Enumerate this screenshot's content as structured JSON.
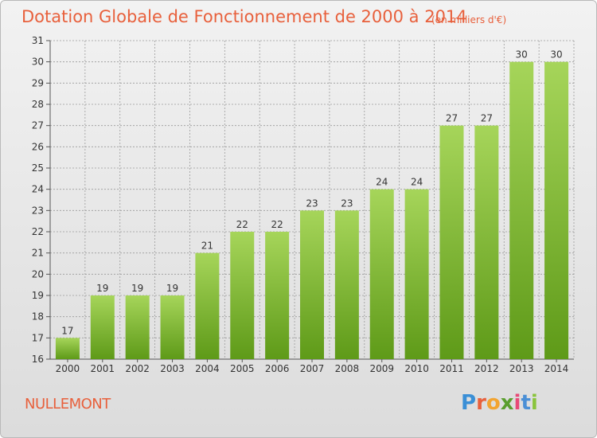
{
  "header": {
    "title": "Dotation Globale de Fonctionnement de 2000 à 2014",
    "unit": "(en milliers d'€)"
  },
  "footer": {
    "commune": "NULLEMONT",
    "logo_letters": [
      "P",
      "r",
      "o",
      "x",
      "i",
      "t",
      "i"
    ],
    "logo_colors": [
      "#3a8fd6",
      "#e8603c",
      "#f2a431",
      "#5a9e2e",
      "#e84a77",
      "#4a8fd6",
      "#8ac43d"
    ]
  },
  "colors": {
    "bar_top": "#a6d55a",
    "bar_bottom": "#5e9a18",
    "grid": "#9a9a9a",
    "text": "#333333",
    "title": "#e8603c"
  },
  "chart_data": {
    "type": "bar",
    "categories": [
      "2000",
      "2001",
      "2002",
      "2003",
      "2004",
      "2005",
      "2006",
      "2007",
      "2008",
      "2009",
      "2010",
      "2011",
      "2012",
      "2013",
      "2014"
    ],
    "values": [
      17,
      19,
      19,
      19,
      21,
      22,
      22,
      23,
      23,
      24,
      24,
      27,
      27,
      30,
      30
    ],
    "title": "Dotation Globale de Fonctionnement de 2000 à 2014",
    "ylim": [
      16,
      31
    ],
    "yticks": [
      16,
      17,
      18,
      19,
      20,
      21,
      22,
      23,
      24,
      25,
      26,
      27,
      28,
      29,
      30,
      31
    ],
    "grid": true,
    "legend": "none"
  }
}
